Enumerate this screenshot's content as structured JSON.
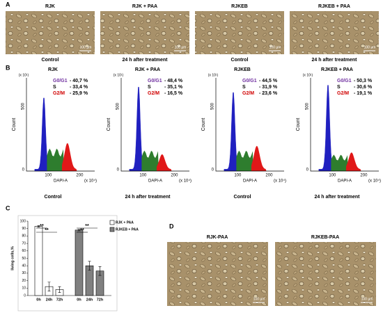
{
  "panel_labels": [
    "A",
    "B",
    "C",
    "D"
  ],
  "panel_a": {
    "images": [
      {
        "title": "RJK",
        "caption": "Control",
        "scale": "100 µm"
      },
      {
        "title": "RJK + PAA",
        "caption": "24 h after treatment",
        "scale": "100 µm"
      },
      {
        "title": "RJKEB",
        "caption": "Control",
        "scale": "100 µm"
      },
      {
        "title": "RJKEB + PAA",
        "caption": "24 h after treatment",
        "scale": "100 µm"
      }
    ]
  },
  "panel_b": {
    "y_label": "Count",
    "y_unit": "(x 10¹)",
    "x_label": "DAPI-A",
    "x_unit": "(x 10⁴)",
    "yticks": [
      "0",
      "500"
    ],
    "xticks": [
      "100",
      "200"
    ],
    "histograms": [
      {
        "title": "RJK",
        "caption": "Control",
        "phases": [
          {
            "name": "G0/G1",
            "value": "- 40,7 %"
          },
          {
            "name": "S",
            "value": "- 33,4 %"
          },
          {
            "name": "G2/M",
            "value": "- 25,9 %"
          }
        ]
      },
      {
        "title": "RJK + PAA",
        "caption": "24 h after treatment",
        "phases": [
          {
            "name": "G0/G1",
            "value": "- 48,4 %"
          },
          {
            "name": "S",
            "value": "- 35,1 %"
          },
          {
            "name": "G2/M",
            "value": "- 16,5 %"
          }
        ]
      },
      {
        "title": "RJKEB",
        "caption": "Control",
        "phases": [
          {
            "name": "G0/G1",
            "value": "- 44,5 %"
          },
          {
            "name": "S",
            "value": "- 31,9 %"
          },
          {
            "name": "G2/M",
            "value": "- 23,6 %"
          }
        ]
      },
      {
        "title": "RJKEB + PAA",
        "caption": "24 h after treatment",
        "phases": [
          {
            "name": "G0/G1",
            "value": "- 50,3 %"
          },
          {
            "name": "S",
            "value": "- 30,6 %"
          },
          {
            "name": "G2/M",
            "value": "- 19,1 %"
          }
        ]
      }
    ]
  },
  "chart_data": {
    "type": "bar",
    "y_label": "living cells,%",
    "ylim": [
      0,
      100
    ],
    "yticks": [
      0,
      10,
      20,
      30,
      40,
      50,
      60,
      70,
      80,
      90,
      100
    ],
    "categories": [
      "0h",
      "24h",
      "72h"
    ],
    "series": [
      {
        "name": "RJK + PAA",
        "color": "#ffffff",
        "values": [
          93,
          12,
          8
        ],
        "errors": [
          1,
          6,
          4
        ]
      },
      {
        "name": "RJKEB + PAA",
        "color": "#808080",
        "values": [
          88,
          40,
          33
        ],
        "errors": [
          1,
          6,
          6
        ]
      }
    ],
    "annotations": [
      "**",
      "**",
      "**",
      "**"
    ]
  },
  "panel_d": {
    "images": [
      {
        "title": "RJK-PAA",
        "scale": "100 µm"
      },
      {
        "title": "RJKEB-PAA",
        "scale": "100 µm"
      }
    ]
  }
}
